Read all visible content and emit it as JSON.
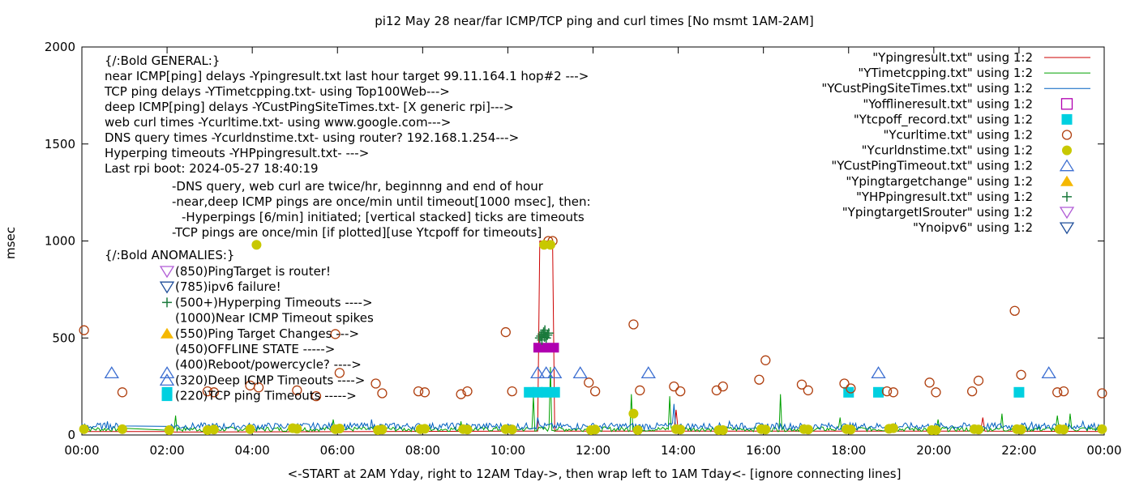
{
  "chart_data": {
    "type": "scatter",
    "title": "pi12 May 28  near/far ICMP/TCP ping and curl times [No msmt 1AM-2AM]",
    "xlabel": "<-START at 2AM Yday, right to 12AM Tday->, then wrap left to 1AM Tday<- [ignore connecting lines]",
    "ylabel": "msec",
    "xlim": [
      0,
      24
    ],
    "ylim": [
      0,
      2000
    ],
    "grid": false,
    "legend_position": "top-right",
    "x_ticks": [
      "00:00",
      "02:00",
      "04:00",
      "06:00",
      "08:00",
      "10:00",
      "12:00",
      "14:00",
      "16:00",
      "18:00",
      "20:00",
      "22:00",
      "00:00"
    ],
    "y_ticks": [
      "0",
      "500",
      "1000",
      "1500",
      "2000"
    ],
    "annotations": {
      "general": [
        "{/:Bold GENERAL:}",
        "near ICMP[ping] delays -Ypingresult.txt last hour target 99.11.164.1 hop#2 --->",
        "TCP ping delays -YTimetcpping.txt- using Top100Web--->",
        "deep ICMP[ping] delays -YCustPingSiteTimes.txt- [X generic rpi]--->",
        "web curl times -Ycurltime.txt- using www.google.com--->",
        "DNS query times -Ycurldnstime.txt- using router? 192.168.1.254--->",
        "Hyperping timeouts -YHPpingresult.txt- --->",
        "Last rpi boot: 2024-05-27 18:40:19"
      ],
      "notes": [
        "-DNS query, web curl are twice/hr, beginnng and end of hour",
        "-near,deep ICMP pings are once/min until timeout[1000 msec], then:",
        "-Hyperpings [6/min] initiated; [vertical stacked] ticks are timeouts",
        "-TCP pings are once/min [if plotted][use Ytcpoff for timeouts]"
      ],
      "anomalies_header": "{/:Bold ANOMALIES:}",
      "anomalies": [
        {
          "text": "(850)PingTarget is router!",
          "marker": "tri-down-open",
          "color": "#b15cd6"
        },
        {
          "text": "(785)ipv6 failure!",
          "marker": "tri-down-open",
          "color": "#1f4e9a"
        },
        {
          "text": "(500+)Hyperping Timeouts ---->",
          "marker": "plus",
          "color": "#1a7a3c"
        },
        {
          "text": "(1000)Near ICMP Timeout spikes",
          "marker": "none",
          "color": ""
        },
        {
          "text": "(550)Ping Target Changes --->",
          "marker": "tri-up-fill",
          "color": "#f5b800"
        },
        {
          "text": "(450)OFFLINE STATE ----->",
          "marker": "none",
          "color": ""
        },
        {
          "text": "(400)Reboot/powercycle? ---->",
          "marker": "none",
          "color": ""
        },
        {
          "text": "(320)Deep ICMP Timeouts ---->",
          "marker": "tri-up-open",
          "color": "#3d6fd1"
        },
        {
          "text": "(220)TCP ping Timeouts ----->",
          "marker": "square-fill",
          "color": "#00d0e0"
        }
      ]
    },
    "series": [
      {
        "name": "\"Ypingresult.txt\" using 1:2",
        "style": "line",
        "color": "#cc0000",
        "points": [
          [
            0,
            18
          ],
          [
            2,
            18
          ],
          [
            2.05,
            15
          ],
          [
            10.7,
            20
          ],
          [
            10.75,
            1000
          ],
          [
            11.05,
            1000
          ],
          [
            11.1,
            20
          ],
          [
            13.9,
            20
          ],
          [
            13.95,
            130
          ],
          [
            14.0,
            20
          ],
          [
            21.1,
            20
          ],
          [
            21.15,
            90
          ],
          [
            21.2,
            20
          ],
          [
            24,
            18
          ]
        ]
      },
      {
        "name": "\"YTimetcpping.txt\" using 1:2",
        "style": "line",
        "color": "#00a000",
        "baseline": 30,
        "noise": 25,
        "spikes": [
          [
            1.8,
            90
          ],
          [
            2.2,
            100
          ],
          [
            5.9,
            80
          ],
          [
            8.9,
            70
          ],
          [
            10.6,
            200
          ],
          [
            11.0,
            350
          ],
          [
            12.9,
            210
          ],
          [
            13.8,
            200
          ],
          [
            16.4,
            210
          ],
          [
            17.8,
            90
          ],
          [
            20.1,
            80
          ],
          [
            21.6,
            110
          ],
          [
            22.9,
            100
          ],
          [
            23.2,
            110
          ]
        ]
      },
      {
        "name": "\"YCustPingSiteTimes.txt\" using 1:2",
        "style": "line",
        "color": "#0060c0",
        "baseline": 45,
        "noise": 35,
        "spikes": [
          [
            0.6,
            70
          ],
          [
            6.8,
            80
          ],
          [
            10.7,
            90
          ],
          [
            13.9,
            160
          ],
          [
            15.2,
            70
          ],
          [
            19.1,
            60
          ],
          [
            22.3,
            65
          ],
          [
            23.5,
            70
          ]
        ]
      },
      {
        "name": "\"Yofflineresult.txt\" using 1:2",
        "style": "square-open",
        "color": "#b000b0",
        "points": [],
        "bar": [
          10.6,
          11.2,
          450
        ]
      },
      {
        "name": "\"Ytcpoff_record.txt\" using 1:2",
        "style": "square-fill",
        "color": "#00d0e0",
        "points": [
          [
            2.0,
            220
          ],
          [
            10.5,
            220
          ],
          [
            10.7,
            220
          ],
          [
            10.9,
            220
          ],
          [
            11.1,
            220
          ],
          [
            18.0,
            220
          ],
          [
            18.7,
            220
          ],
          [
            22.0,
            220
          ]
        ]
      },
      {
        "name": "\"Ycurltime.txt\" using 1:2",
        "style": "circle-open",
        "color": "#b04010",
        "points": [
          [
            0.05,
            540
          ],
          [
            0.95,
            220
          ],
          [
            2.95,
            225
          ],
          [
            3.1,
            220
          ],
          [
            3.95,
            255
          ],
          [
            4.15,
            245
          ],
          [
            5.05,
            230
          ],
          [
            5.5,
            200
          ],
          [
            5.95,
            520
          ],
          [
            6.05,
            320
          ],
          [
            6.9,
            265
          ],
          [
            7.05,
            215
          ],
          [
            7.9,
            225
          ],
          [
            8.05,
            220
          ],
          [
            8.9,
            210
          ],
          [
            9.05,
            225
          ],
          [
            9.95,
            530
          ],
          [
            10.1,
            225
          ],
          [
            10.95,
            1000
          ],
          [
            11.05,
            1000
          ],
          [
            11.9,
            270
          ],
          [
            12.05,
            225
          ],
          [
            12.95,
            570
          ],
          [
            13.1,
            230
          ],
          [
            13.9,
            250
          ],
          [
            14.05,
            225
          ],
          [
            14.9,
            230
          ],
          [
            15.05,
            250
          ],
          [
            15.9,
            285
          ],
          [
            16.05,
            385
          ],
          [
            16.9,
            260
          ],
          [
            17.05,
            230
          ],
          [
            17.9,
            265
          ],
          [
            18.05,
            240
          ],
          [
            18.9,
            225
          ],
          [
            19.05,
            220
          ],
          [
            19.9,
            270
          ],
          [
            20.05,
            220
          ],
          [
            20.9,
            225
          ],
          [
            21.05,
            280
          ],
          [
            21.9,
            640
          ],
          [
            22.05,
            310
          ],
          [
            22.9,
            220
          ],
          [
            23.05,
            225
          ],
          [
            23.95,
            215
          ]
        ]
      },
      {
        "name": "\"Ycurldnstime.txt\" using 1:2",
        "style": "circle-fill",
        "color": "#c8c800",
        "points": [
          [
            0.05,
            30
          ],
          [
            0.95,
            30
          ],
          [
            2.05,
            25
          ],
          [
            2.95,
            25
          ],
          [
            3.1,
            28
          ],
          [
            3.95,
            30
          ],
          [
            4.1,
            980
          ],
          [
            4.95,
            35
          ],
          [
            5.05,
            32
          ],
          [
            5.95,
            30
          ],
          [
            6.05,
            33
          ],
          [
            6.95,
            25
          ],
          [
            7.05,
            28
          ],
          [
            7.95,
            30
          ],
          [
            8.05,
            32
          ],
          [
            8.95,
            30
          ],
          [
            9.05,
            28
          ],
          [
            9.95,
            30
          ],
          [
            10.1,
            28
          ],
          [
            10.85,
            980
          ],
          [
            11.0,
            980
          ],
          [
            11.95,
            25
          ],
          [
            12.05,
            28
          ],
          [
            12.95,
            110
          ],
          [
            13.05,
            25
          ],
          [
            13.95,
            30
          ],
          [
            14.05,
            28
          ],
          [
            14.95,
            25
          ],
          [
            15.05,
            25
          ],
          [
            15.95,
            30
          ],
          [
            16.05,
            28
          ],
          [
            16.95,
            30
          ],
          [
            17.05,
            28
          ],
          [
            17.95,
            30
          ],
          [
            18.05,
            28
          ],
          [
            18.95,
            32
          ],
          [
            19.05,
            35
          ],
          [
            19.95,
            25
          ],
          [
            20.05,
            25
          ],
          [
            20.95,
            30
          ],
          [
            21.05,
            28
          ],
          [
            21.95,
            30
          ],
          [
            22.05,
            28
          ],
          [
            22.95,
            30
          ],
          [
            23.05,
            28
          ],
          [
            23.95,
            30
          ]
        ]
      },
      {
        "name": "\"YCustPingTimeout.txt\" using 1:2",
        "style": "tri-up-open",
        "color": "#3d6fd1",
        "points": [
          [
            0.7,
            320
          ],
          [
            2.0,
            320
          ],
          [
            10.7,
            320
          ],
          [
            10.9,
            320
          ],
          [
            11.1,
            320
          ],
          [
            11.7,
            320
          ],
          [
            13.3,
            320
          ],
          [
            18.7,
            320
          ],
          [
            22.7,
            320
          ]
        ]
      },
      {
        "name": "\"Ypingtargetchange\" using 1:2",
        "style": "tri-up-fill",
        "color": "#f5b800",
        "points": []
      },
      {
        "name": "\"YHPpingresult.txt\" using 1:2",
        "style": "plus",
        "color": "#1a7a3c",
        "points": [
          [
            10.75,
            500
          ],
          [
            10.78,
            510
          ],
          [
            10.81,
            520
          ],
          [
            10.84,
            530
          ],
          [
            10.87,
            540
          ],
          [
            10.9,
            500
          ],
          [
            10.93,
            515
          ],
          [
            10.96,
            525
          ],
          [
            10.8,
            490
          ],
          [
            10.86,
            505
          ]
        ]
      },
      {
        "name": "\"YpingtargetISrouter\" using 1:2",
        "style": "tri-down-open",
        "color": "#b15cd6",
        "points": []
      },
      {
        "name": "\"Ynoipv6\" using 1:2",
        "style": "tri-down-open",
        "color": "#1f4e9a",
        "points": []
      }
    ]
  }
}
